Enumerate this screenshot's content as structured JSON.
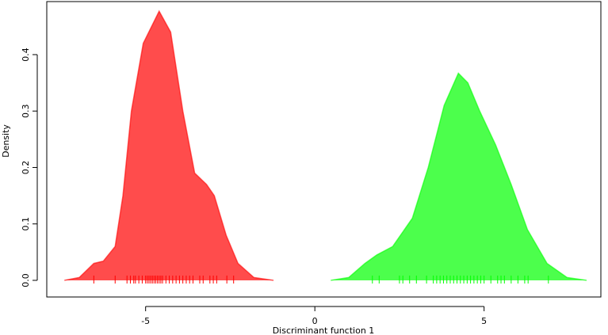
{
  "chart_data": {
    "type": "density",
    "xlabel": "Discriminant function 1",
    "ylabel": "Density",
    "xlim": [
      -7.92,
      8.45
    ],
    "ylim": [
      -0.0295,
      0.494
    ],
    "xticks": [
      -5,
      0,
      5
    ],
    "yticks": [
      {
        "value": 0,
        "label": "0.0"
      },
      0.1,
      0.2,
      0.3,
      0.4
    ],
    "series": [
      {
        "color": "#ff0000",
        "x": [
          -7.4,
          -6.96,
          -6.53,
          -6.25,
          -5.9,
          -5.67,
          -5.42,
          -5.07,
          -4.6,
          -4.26,
          -3.9,
          -3.55,
          -3.2,
          -2.97,
          -2.62,
          -2.27,
          -1.8,
          -1.22
        ],
        "values": [
          0,
          0.005,
          0.03,
          0.034,
          0.06,
          0.15,
          0.3,
          0.42,
          0.477,
          0.44,
          0.3,
          0.19,
          0.17,
          0.15,
          0.08,
          0.03,
          0.005,
          0
        ],
        "rug": [
          -6.53,
          -5.9,
          -5.55,
          -5.45,
          -5.35,
          -5.3,
          -5.2,
          -5.1,
          -5.0,
          -4.95,
          -4.9,
          -4.85,
          -4.8,
          -4.75,
          -4.7,
          -4.65,
          -4.6,
          -4.55,
          -4.5,
          -4.4,
          -4.3,
          -4.2,
          -4.1,
          -4.0,
          -3.9,
          -3.8,
          -3.7,
          -3.6,
          -3.4,
          -3.3,
          -3.1,
          -3.0,
          -2.9,
          -2.6,
          -2.4
        ]
      },
      {
        "color": "#00ff00",
        "x": [
          0.47,
          1.0,
          1.48,
          1.83,
          2.3,
          2.88,
          3.35,
          3.82,
          4.24,
          4.52,
          4.87,
          5.34,
          5.8,
          6.28,
          6.86,
          7.45,
          8.03
        ],
        "values": [
          0,
          0.005,
          0.03,
          0.045,
          0.06,
          0.11,
          0.2,
          0.31,
          0.367,
          0.35,
          0.3,
          0.24,
          0.17,
          0.09,
          0.03,
          0.005,
          0
        ],
        "rug": [
          1.7,
          1.9,
          2.5,
          2.6,
          2.8,
          3.0,
          3.3,
          3.5,
          3.6,
          3.7,
          3.8,
          3.9,
          4.0,
          4.1,
          4.2,
          4.3,
          4.4,
          4.5,
          4.6,
          4.7,
          4.8,
          4.9,
          5.0,
          5.2,
          5.4,
          5.5,
          5.6,
          5.8,
          6.0,
          6.2,
          6.3,
          6.9
        ]
      }
    ]
  }
}
